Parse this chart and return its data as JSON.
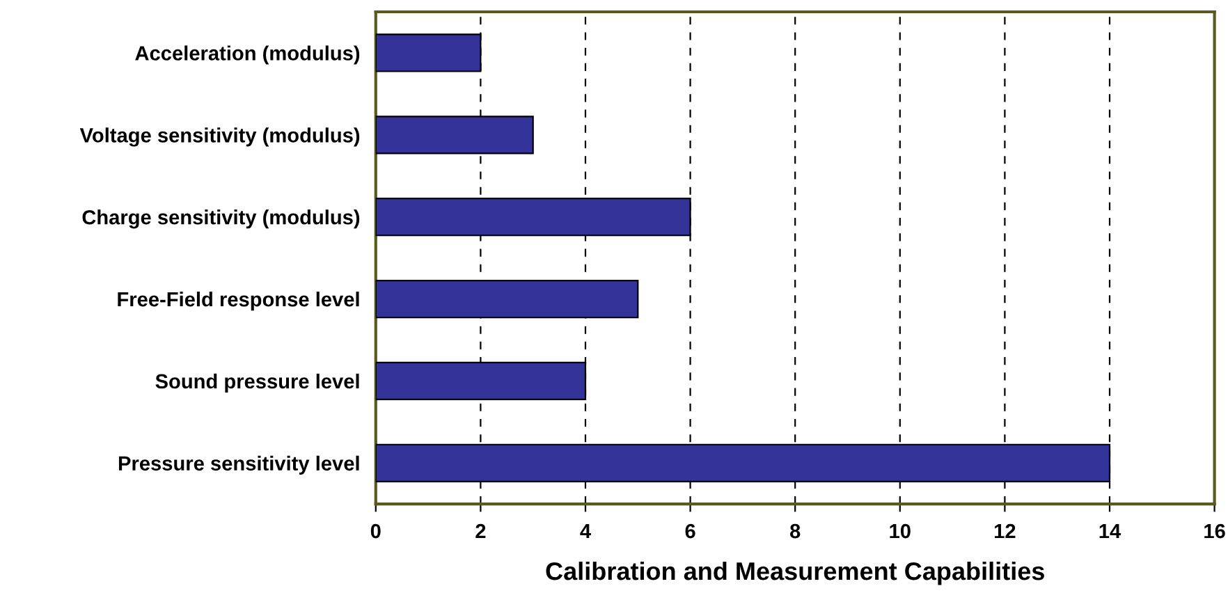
{
  "chart_data": {
    "type": "bar",
    "orientation": "horizontal",
    "xlabel": "Calibration and Measurement Capabilities",
    "categories": [
      "Acceleration (modulus)",
      "Voltage sensitivity (modulus)",
      "Charge sensitivity (modulus)",
      "Free-Field response level",
      "Sound pressure level",
      "Pressure sensitivity level"
    ],
    "values": [
      2,
      3,
      6,
      5,
      4,
      14
    ],
    "color": "#333399",
    "xlim": [
      0,
      16
    ],
    "xticks": [
      0,
      2,
      4,
      6,
      8,
      10,
      12,
      14,
      16
    ],
    "grid": "x"
  }
}
